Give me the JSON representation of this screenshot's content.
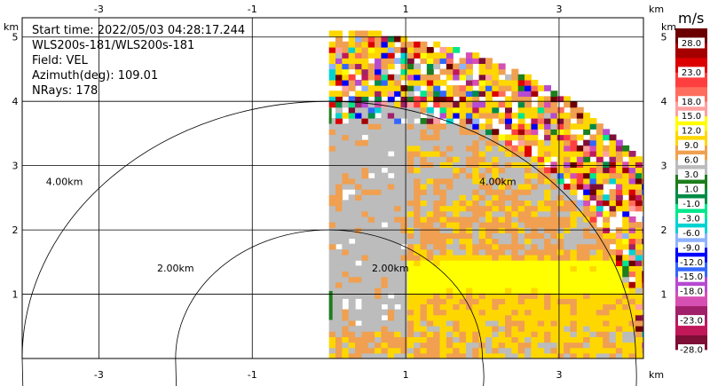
{
  "chart_data": {
    "type": "heatmap",
    "field": "VEL",
    "info": {
      "start_time": "Start time: 2022/05/03 04:28:17.244",
      "instrument": "WLS200s-181/WLS200s-181",
      "field": "Field: VEL",
      "azimuth": "Azimuth(deg): 109.01",
      "nrays": "NRays: 178"
    },
    "x_unit": "km",
    "y_unit": "km",
    "xlim": [
      -4.0,
      4.1
    ],
    "ylim": [
      0.0,
      5.3
    ],
    "x_ticks": [
      {
        "value": -3,
        "label": "-3"
      },
      {
        "value": -1,
        "label": "-1"
      },
      {
        "value": 1,
        "label": "1"
      },
      {
        "value": 3,
        "label": "3"
      }
    ],
    "y_ticks": [
      {
        "value": 1,
        "label": "1"
      },
      {
        "value": 2,
        "label": "2"
      },
      {
        "value": 3,
        "label": "3"
      },
      {
        "value": 4,
        "label": "4"
      },
      {
        "value": 5,
        "label": "5"
      }
    ],
    "range_rings": [
      {
        "radius_km": 2.0,
        "label": "2.00km",
        "label_left": {
          "x": -2.0,
          "y": 1.35
        },
        "label_right": {
          "x": 0.8,
          "y": 1.35
        }
      },
      {
        "radius_km": 4.0,
        "label": "4.00km",
        "label_left": {
          "x": -3.45,
          "y": 2.7
        },
        "label_right": {
          "x": 2.2,
          "y": 2.7
        }
      }
    ],
    "grid": true,
    "data_sector": {
      "max_range_km": 5.1,
      "x_min_km": 0.0
    },
    "colorbar": {
      "unit": "m/s",
      "placement": "right",
      "colors": [
        "#7d0e35",
        "#c1185a",
        "#a0216a",
        "#d64fb2",
        "#b64ad1",
        "#3366ff",
        "#0000ff",
        "#8fb2ff",
        "#00d2d2",
        "#00e78c",
        "#008c46",
        "#1e7d1e",
        "#bcbcbc",
        "#f0a050",
        "#ffd700",
        "#ffff00",
        "#ffa0a0",
        "#ff6d5c",
        "#ff3f3f",
        "#dc0000",
        "#a50000",
        "#6b0000"
      ],
      "labels": [
        "-28.0",
        "-23.0",
        "-18.0",
        "-15.0",
        "-12.0",
        "-9.0",
        "-6.0",
        "-3.0",
        "-1.0",
        "1.0",
        "3.0",
        "6.0",
        "9.0",
        "12.0",
        "15.0",
        "18.0",
        "23.0",
        "28.0"
      ],
      "label_positions": [
        0,
        2,
        4,
        5,
        6,
        7,
        8,
        9,
        10,
        11,
        12,
        13,
        14,
        15,
        16,
        17,
        19,
        21
      ]
    }
  }
}
